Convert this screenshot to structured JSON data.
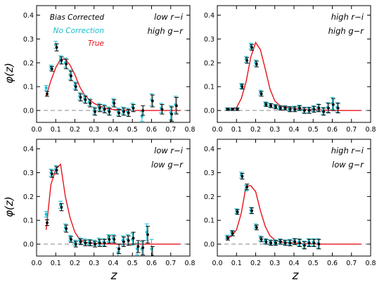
{
  "figure": {
    "ylabel": "φ(z)",
    "xlabel": "z",
    "x_ticks": [
      "0.0",
      "0.1",
      "0.2",
      "0.3",
      "0.4",
      "0.5",
      "0.6",
      "0.7",
      "0.8"
    ],
    "y_ticks": [
      "0.0",
      "0.1",
      "0.2",
      "0.3",
      "0.4"
    ],
    "legend": {
      "bias_corrected": "Bias Corrected",
      "no_correction": "No Correction",
      "true": "True"
    },
    "colors": {
      "bias_corrected": "#000000",
      "no_correction": "#17becf",
      "true": "#e8121b",
      "zero_line": "#888888"
    }
  },
  "chart_data": [
    {
      "type": "line",
      "label_line1": "low r−i",
      "label_line2": "high g−r",
      "xlim": [
        0.0,
        0.8
      ],
      "ylim": [
        -0.05,
        0.44
      ],
      "show_legend": true,
      "true": {
        "x": [
          0.05,
          0.075,
          0.1,
          0.125,
          0.15,
          0.175,
          0.2,
          0.225,
          0.25,
          0.275,
          0.3,
          0.325,
          0.35,
          0.375,
          0.4,
          0.45,
          0.5,
          0.55,
          0.6,
          0.65,
          0.7,
          0.75
        ],
        "y": [
          0.06,
          0.125,
          0.18,
          0.215,
          0.215,
          0.19,
          0.15,
          0.1,
          0.065,
          0.045,
          0.03,
          0.02,
          0.012,
          0.007,
          0.004,
          0.002,
          0.0,
          0.0,
          0.0,
          0.0,
          0.0,
          0.0
        ]
      },
      "bias_corrected": [
        [
          0.055,
          0.07,
          0.01
        ],
        [
          0.08,
          0.175,
          0.01
        ],
        [
          0.105,
          0.265,
          0.015
        ],
        [
          0.13,
          0.21,
          0.015
        ],
        [
          0.155,
          0.195,
          0.02
        ],
        [
          0.18,
          0.145,
          0.02
        ],
        [
          0.205,
          0.1,
          0.015
        ],
        [
          0.23,
          0.055,
          0.015
        ],
        [
          0.255,
          0.045,
          0.015
        ],
        [
          0.28,
          0.03,
          0.015
        ],
        [
          0.305,
          -0.005,
          0.015
        ],
        [
          0.33,
          0.01,
          0.015
        ],
        [
          0.355,
          0.005,
          0.015
        ],
        [
          0.38,
          -0.005,
          0.015
        ],
        [
          0.405,
          0.03,
          0.015
        ],
        [
          0.43,
          -0.01,
          0.015
        ],
        [
          0.455,
          -0.005,
          0.015
        ],
        [
          0.48,
          -0.01,
          0.015
        ],
        [
          0.505,
          0.01,
          0.015
        ],
        [
          0.555,
          0.0,
          0.02
        ],
        [
          0.605,
          0.04,
          0.025
        ],
        [
          0.655,
          0.005,
          0.02
        ],
        [
          0.705,
          -0.015,
          0.03
        ],
        [
          0.73,
          0.02,
          0.035
        ]
      ],
      "no_correction": [
        [
          0.05,
          0.095,
          0.01
        ],
        [
          0.075,
          0.18,
          0.01
        ],
        [
          0.1,
          0.275,
          0.015
        ],
        [
          0.125,
          0.215,
          0.015
        ],
        [
          0.15,
          0.2,
          0.02
        ],
        [
          0.175,
          0.15,
          0.02
        ],
        [
          0.2,
          0.105,
          0.015
        ],
        [
          0.225,
          0.06,
          0.015
        ],
        [
          0.25,
          0.05,
          0.015
        ],
        [
          0.275,
          0.035,
          0.015
        ],
        [
          0.3,
          0.0,
          0.015
        ],
        [
          0.325,
          0.015,
          0.015
        ],
        [
          0.35,
          0.01,
          0.015
        ],
        [
          0.375,
          0.0,
          0.015
        ],
        [
          0.4,
          0.035,
          0.015
        ],
        [
          0.425,
          -0.005,
          0.015
        ],
        [
          0.45,
          0.0,
          0.015
        ],
        [
          0.475,
          -0.005,
          0.015
        ],
        [
          0.5,
          0.015,
          0.015
        ],
        [
          0.55,
          -0.025,
          0.02
        ],
        [
          0.6,
          0.045,
          0.025
        ],
        [
          0.65,
          0.01,
          0.02
        ],
        [
          0.7,
          -0.01,
          0.03
        ],
        [
          0.725,
          0.025,
          0.035
        ]
      ]
    },
    {
      "type": "line",
      "label_line1": "high r−i",
      "label_line2": "high g−r",
      "xlim": [
        0.0,
        0.8
      ],
      "ylim": [
        -0.05,
        0.44
      ],
      "show_legend": false,
      "true": {
        "x": [
          0.05,
          0.075,
          0.1,
          0.125,
          0.15,
          0.175,
          0.2,
          0.225,
          0.25,
          0.275,
          0.3,
          0.325,
          0.35,
          0.4,
          0.45,
          0.5,
          0.55,
          0.6,
          0.65,
          0.7,
          0.75
        ],
        "y": [
          0.003,
          0.005,
          0.012,
          0.05,
          0.12,
          0.225,
          0.285,
          0.255,
          0.175,
          0.09,
          0.04,
          0.022,
          0.014,
          0.008,
          0.005,
          0.003,
          0.002,
          0.0,
          0.0,
          0.0,
          0.0
        ]
      },
      "bias_corrected": [
        [
          0.055,
          0.005,
          0.005
        ],
        [
          0.08,
          0.005,
          0.005
        ],
        [
          0.105,
          0.005,
          0.005
        ],
        [
          0.13,
          0.1,
          0.01
        ],
        [
          0.155,
          0.21,
          0.012
        ],
        [
          0.18,
          0.265,
          0.012
        ],
        [
          0.205,
          0.195,
          0.012
        ],
        [
          0.23,
          0.07,
          0.01
        ],
        [
          0.255,
          0.025,
          0.008
        ],
        [
          0.28,
          0.02,
          0.008
        ],
        [
          0.305,
          0.015,
          0.008
        ],
        [
          0.33,
          0.01,
          0.008
        ],
        [
          0.355,
          0.01,
          0.008
        ],
        [
          0.38,
          0.005,
          0.01
        ],
        [
          0.405,
          0.005,
          0.01
        ],
        [
          0.43,
          0.01,
          0.01
        ],
        [
          0.455,
          0.0,
          0.012
        ],
        [
          0.48,
          0.0,
          0.012
        ],
        [
          0.505,
          0.005,
          0.012
        ],
        [
          0.53,
          0.01,
          0.015
        ],
        [
          0.555,
          -0.005,
          0.015
        ],
        [
          0.58,
          0.01,
          0.02
        ],
        [
          0.605,
          0.025,
          0.025
        ],
        [
          0.63,
          0.01,
          0.02
        ]
      ],
      "no_correction": [
        [
          0.05,
          0.006,
          0.005
        ],
        [
          0.075,
          0.005,
          0.005
        ],
        [
          0.1,
          0.007,
          0.005
        ],
        [
          0.125,
          0.103,
          0.01
        ],
        [
          0.15,
          0.215,
          0.012
        ],
        [
          0.175,
          0.27,
          0.012
        ],
        [
          0.2,
          0.2,
          0.012
        ],
        [
          0.225,
          0.075,
          0.01
        ],
        [
          0.25,
          0.028,
          0.008
        ],
        [
          0.275,
          0.022,
          0.008
        ],
        [
          0.3,
          0.018,
          0.008
        ],
        [
          0.325,
          0.012,
          0.008
        ],
        [
          0.35,
          0.012,
          0.008
        ],
        [
          0.375,
          0.007,
          0.01
        ],
        [
          0.4,
          0.008,
          0.01
        ],
        [
          0.425,
          0.012,
          0.01
        ],
        [
          0.45,
          0.002,
          0.012
        ],
        [
          0.475,
          0.002,
          0.012
        ],
        [
          0.5,
          0.008,
          0.012
        ],
        [
          0.525,
          0.012,
          0.015
        ],
        [
          0.55,
          -0.002,
          0.015
        ],
        [
          0.575,
          0.013,
          0.02
        ],
        [
          0.6,
          0.03,
          0.025
        ],
        [
          0.625,
          0.013,
          0.02
        ]
      ]
    },
    {
      "type": "line",
      "label_line1": "low r−i",
      "label_line2": "low g−r",
      "xlim": [
        0.0,
        0.8
      ],
      "ylim": [
        -0.05,
        0.44
      ],
      "show_legend": false,
      "true": {
        "x": [
          0.05,
          0.075,
          0.1,
          0.125,
          0.15,
          0.175,
          0.2,
          0.225,
          0.25,
          0.275,
          0.3,
          0.35,
          0.4,
          0.45,
          0.5,
          0.55,
          0.6,
          0.65,
          0.7,
          0.75
        ],
        "y": [
          0.06,
          0.25,
          0.315,
          0.335,
          0.2,
          0.11,
          0.05,
          0.02,
          0.01,
          0.005,
          0.003,
          0.002,
          0.0,
          0.0,
          0.0,
          0.0,
          0.0,
          0.0,
          0.0,
          0.0
        ]
      },
      "bias_corrected": [
        [
          0.055,
          0.09,
          0.012
        ],
        [
          0.08,
          0.295,
          0.015
        ],
        [
          0.105,
          0.31,
          0.015
        ],
        [
          0.13,
          0.155,
          0.015
        ],
        [
          0.155,
          0.065,
          0.015
        ],
        [
          0.18,
          0.02,
          0.012
        ],
        [
          0.205,
          0.0,
          0.012
        ],
        [
          0.23,
          0.01,
          0.012
        ],
        [
          0.255,
          0.005,
          0.012
        ],
        [
          0.28,
          0.005,
          0.012
        ],
        [
          0.305,
          0.0,
          0.012
        ],
        [
          0.33,
          0.005,
          0.015
        ],
        [
          0.355,
          0.005,
          0.015
        ],
        [
          0.38,
          0.02,
          0.015
        ],
        [
          0.405,
          0.02,
          0.015
        ],
        [
          0.43,
          -0.02,
          0.02
        ],
        [
          0.455,
          0.01,
          0.02
        ],
        [
          0.48,
          0.015,
          0.02
        ],
        [
          0.505,
          0.025,
          0.025
        ],
        [
          0.53,
          -0.01,
          0.025
        ],
        [
          0.555,
          -0.015,
          0.03
        ],
        [
          0.58,
          0.04,
          0.035
        ],
        [
          0.605,
          -0.05,
          0.04
        ]
      ],
      "no_correction": [
        [
          0.05,
          0.125,
          0.012
        ],
        [
          0.075,
          0.3,
          0.015
        ],
        [
          0.1,
          0.315,
          0.015
        ],
        [
          0.125,
          0.165,
          0.015
        ],
        [
          0.15,
          0.07,
          0.015
        ],
        [
          0.175,
          0.025,
          0.012
        ],
        [
          0.2,
          0.005,
          0.012
        ],
        [
          0.225,
          0.015,
          0.012
        ],
        [
          0.25,
          0.01,
          0.012
        ],
        [
          0.275,
          0.008,
          0.012
        ],
        [
          0.3,
          0.005,
          0.012
        ],
        [
          0.325,
          0.01,
          0.015
        ],
        [
          0.35,
          0.008,
          0.015
        ],
        [
          0.375,
          0.025,
          0.015
        ],
        [
          0.4,
          0.025,
          0.015
        ],
        [
          0.425,
          -0.035,
          0.02
        ],
        [
          0.45,
          0.015,
          0.02
        ],
        [
          0.475,
          0.02,
          0.02
        ],
        [
          0.5,
          0.02,
          0.025
        ],
        [
          0.525,
          -0.02,
          0.025
        ],
        [
          0.55,
          -0.02,
          0.03
        ],
        [
          0.575,
          0.05,
          0.035
        ],
        [
          0.6,
          -0.02,
          0.04
        ]
      ]
    },
    {
      "type": "line",
      "label_line1": "high r−i",
      "label_line2": "low g−r",
      "xlim": [
        0.0,
        0.8
      ],
      "ylim": [
        -0.05,
        0.44
      ],
      "show_legend": false,
      "true": {
        "x": [
          0.05,
          0.075,
          0.1,
          0.125,
          0.15,
          0.175,
          0.2,
          0.225,
          0.25,
          0.275,
          0.3,
          0.325,
          0.35,
          0.4,
          0.45,
          0.5,
          0.55,
          0.6,
          0.65,
          0.7,
          0.75
        ],
        "y": [
          0.02,
          0.035,
          0.06,
          0.13,
          0.245,
          0.245,
          0.22,
          0.14,
          0.075,
          0.035,
          0.018,
          0.01,
          0.007,
          0.004,
          0.002,
          0.001,
          0.0,
          0.0,
          0.0,
          0.0,
          0.0
        ]
      },
      "bias_corrected": [
        [
          0.055,
          0.025,
          0.008
        ],
        [
          0.08,
          0.045,
          0.01
        ],
        [
          0.105,
          0.135,
          0.01
        ],
        [
          0.13,
          0.285,
          0.012
        ],
        [
          0.155,
          0.24,
          0.012
        ],
        [
          0.18,
          0.14,
          0.012
        ],
        [
          0.205,
          0.07,
          0.01
        ],
        [
          0.23,
          0.02,
          0.01
        ],
        [
          0.255,
          0.01,
          0.01
        ],
        [
          0.28,
          0.005,
          0.01
        ],
        [
          0.305,
          0.005,
          0.01
        ],
        [
          0.33,
          0.01,
          0.01
        ],
        [
          0.355,
          0.005,
          0.01
        ],
        [
          0.38,
          0.005,
          0.012
        ],
        [
          0.405,
          0.01,
          0.012
        ],
        [
          0.43,
          0.005,
          0.015
        ],
        [
          0.455,
          -0.005,
          0.015
        ],
        [
          0.48,
          0.005,
          0.015
        ],
        [
          0.505,
          0.005,
          0.015
        ],
        [
          0.53,
          0.0,
          0.02
        ]
      ],
      "no_correction": [
        [
          0.05,
          0.03,
          0.008
        ],
        [
          0.075,
          0.048,
          0.01
        ],
        [
          0.1,
          0.138,
          0.01
        ],
        [
          0.125,
          0.29,
          0.012
        ],
        [
          0.15,
          0.235,
          0.012
        ],
        [
          0.175,
          0.142,
          0.012
        ],
        [
          0.2,
          0.075,
          0.01
        ],
        [
          0.225,
          0.025,
          0.01
        ],
        [
          0.25,
          0.013,
          0.01
        ],
        [
          0.275,
          0.008,
          0.01
        ],
        [
          0.3,
          0.008,
          0.01
        ],
        [
          0.325,
          0.012,
          0.01
        ],
        [
          0.35,
          0.008,
          0.01
        ],
        [
          0.375,
          0.008,
          0.012
        ],
        [
          0.4,
          0.012,
          0.012
        ],
        [
          0.425,
          0.008,
          0.015
        ],
        [
          0.45,
          -0.002,
          0.015
        ],
        [
          0.475,
          0.008,
          0.015
        ],
        [
          0.5,
          0.008,
          0.015
        ],
        [
          0.525,
          0.003,
          0.02
        ]
      ]
    }
  ]
}
